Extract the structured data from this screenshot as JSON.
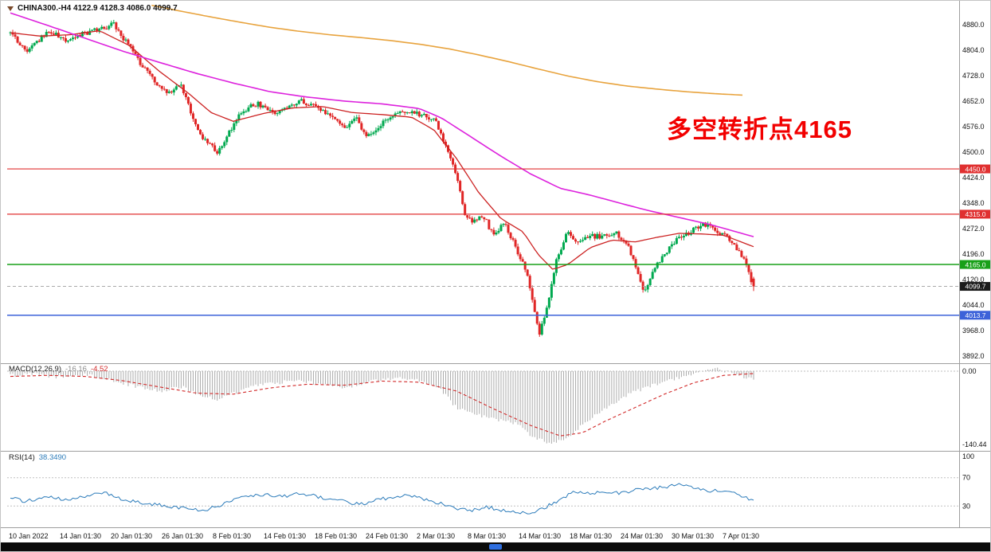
{
  "header": {
    "title": "CHINA300.-H4 4122.9 4128.3 4086.0 4099.7"
  },
  "annotation": {
    "text": "多空转折点4165",
    "color": "#f20000"
  },
  "taskbar": {
    "accent": "#2f6fe0"
  },
  "chart_data": {
    "type": "candlestick",
    "symbol": "CHINA300",
    "timeframe": "H4",
    "title": "CHINA300.-H4 4122.9 4128.3 4086.0 4099.7",
    "last_candle": {
      "open": 4122.9,
      "high": 4128.3,
      "low": 4086.0,
      "close": 4099.7
    },
    "y_axis_ticks": [
      4880,
      4804,
      4728,
      4652,
      4576,
      4500,
      4424,
      4348,
      4272,
      4196,
      4120,
      4044,
      3968,
      3892
    ],
    "x_labels": [
      "10 Jan 2022",
      "14 Jan 01:30",
      "20 Jan 01:30",
      "26 Jan 01:30",
      "8 Feb 01:30",
      "14 Feb 01:30",
      "18 Feb 01:30",
      "24 Feb 01:30",
      "2 Mar 01:30",
      "8 Mar 01:30",
      "14 Mar 01:30",
      "18 Mar 01:30",
      "24 Mar 01:30",
      "30 Mar 01:30",
      "7 Apr 01:30"
    ],
    "price_lines": [
      {
        "value": 4450.0,
        "label": "4450.0",
        "line_color": "#e03030",
        "tag_color": "#e03030",
        "style": "solid",
        "width": 1.2
      },
      {
        "value": 4315.0,
        "label": "4315.0",
        "line_color": "#e03030",
        "tag_color": "#e03030",
        "style": "solid",
        "width": 1.2
      },
      {
        "value": 4165.0,
        "label": "4165.0",
        "line_color": "#18a018",
        "tag_color": "#18a018",
        "style": "solid",
        "width": 1.5
      },
      {
        "value": 4099.7,
        "label": "4099.7",
        "line_color": "#aaaaaa",
        "tag_color": "#1b1b1b",
        "style": "dashed",
        "width": 1
      },
      {
        "value": 4013.7,
        "label": "4013.7",
        "line_color": "#3c62d9",
        "tag_color": "#3c62d9",
        "style": "solid",
        "width": 1.6
      }
    ],
    "candles": {
      "count": 310,
      "up_color": "#00a94f",
      "down_color": "#e02626",
      "close_keyframes": [
        [
          0,
          4855
        ],
        [
          0.021,
          4802
        ],
        [
          0.037,
          4832
        ],
        [
          0.053,
          4862
        ],
        [
          0.075,
          4830
        ],
        [
          0.096,
          4852
        ],
        [
          0.123,
          4868
        ],
        [
          0.139,
          4882
        ],
        [
          0.155,
          4832
        ],
        [
          0.176,
          4762
        ],
        [
          0.198,
          4700
        ],
        [
          0.214,
          4678
        ],
        [
          0.23,
          4702
        ],
        [
          0.246,
          4600
        ],
        [
          0.262,
          4532
        ],
        [
          0.278,
          4500
        ],
        [
          0.294,
          4560
        ],
        [
          0.31,
          4620
        ],
        [
          0.332,
          4645
        ],
        [
          0.353,
          4620
        ],
        [
          0.374,
          4632
        ],
        [
          0.39,
          4658
        ],
        [
          0.412,
          4630
        ],
        [
          0.433,
          4600
        ],
        [
          0.449,
          4576
        ],
        [
          0.465,
          4600
        ],
        [
          0.481,
          4545
        ],
        [
          0.497,
          4580
        ],
        [
          0.513,
          4602
        ],
        [
          0.535,
          4625
        ],
        [
          0.556,
          4610
        ],
        [
          0.572,
          4590
        ],
        [
          0.586,
          4520
        ],
        [
          0.599,
          4440
        ],
        [
          0.612,
          4310
        ],
        [
          0.626,
          4290
        ],
        [
          0.636,
          4312
        ],
        [
          0.65,
          4252
        ],
        [
          0.665,
          4292
        ],
        [
          0.679,
          4222
        ],
        [
          0.693,
          4152
        ],
        [
          0.704,
          4040
        ],
        [
          0.712,
          3958
        ],
        [
          0.723,
          4052
        ],
        [
          0.735,
          4182
        ],
        [
          0.749,
          4262
        ],
        [
          0.765,
          4232
        ],
        [
          0.781,
          4252
        ],
        [
          0.797,
          4246
        ],
        [
          0.813,
          4262
        ],
        [
          0.829,
          4232
        ],
        [
          0.842,
          4152
        ],
        [
          0.853,
          4082
        ],
        [
          0.866,
          4150
        ],
        [
          0.882,
          4200
        ],
        [
          0.898,
          4242
        ],
        [
          0.914,
          4262
        ],
        [
          0.93,
          4286
        ],
        [
          0.947,
          4272
        ],
        [
          0.96,
          4252
        ],
        [
          0.973,
          4232
        ],
        [
          0.986,
          4182
        ],
        [
          1,
          4099.7
        ]
      ]
    },
    "ma_lines": [
      {
        "name": "fast",
        "color": "#cc2222",
        "width": 1.3,
        "points": [
          [
            0,
            4856
          ],
          [
            0.04,
            4846
          ],
          [
            0.08,
            4850
          ],
          [
            0.12,
            4862
          ],
          [
            0.16,
            4818
          ],
          [
            0.2,
            4742
          ],
          [
            0.24,
            4675
          ],
          [
            0.27,
            4618
          ],
          [
            0.3,
            4592
          ],
          [
            0.34,
            4615
          ],
          [
            0.38,
            4632
          ],
          [
            0.42,
            4636
          ],
          [
            0.46,
            4618
          ],
          [
            0.5,
            4612
          ],
          [
            0.54,
            4604
          ],
          [
            0.57,
            4566
          ],
          [
            0.6,
            4482
          ],
          [
            0.63,
            4380
          ],
          [
            0.66,
            4302
          ],
          [
            0.69,
            4262
          ],
          [
            0.71,
            4195
          ],
          [
            0.73,
            4150
          ],
          [
            0.75,
            4165
          ],
          [
            0.78,
            4215
          ],
          [
            0.81,
            4238
          ],
          [
            0.84,
            4232
          ],
          [
            0.87,
            4246
          ],
          [
            0.9,
            4258
          ],
          [
            0.93,
            4256
          ],
          [
            0.96,
            4252
          ],
          [
            1,
            4218
          ]
        ]
      },
      {
        "name": "mid",
        "color": "#dd22dd",
        "width": 1.6,
        "points": [
          [
            0,
            4915
          ],
          [
            0.05,
            4878
          ],
          [
            0.1,
            4840
          ],
          [
            0.15,
            4802
          ],
          [
            0.2,
            4768
          ],
          [
            0.25,
            4735
          ],
          [
            0.3,
            4706
          ],
          [
            0.35,
            4680
          ],
          [
            0.4,
            4664
          ],
          [
            0.45,
            4652
          ],
          [
            0.5,
            4644
          ],
          [
            0.55,
            4630
          ],
          [
            0.58,
            4602
          ],
          [
            0.62,
            4545
          ],
          [
            0.66,
            4488
          ],
          [
            0.7,
            4435
          ],
          [
            0.74,
            4392
          ],
          [
            0.78,
            4372
          ],
          [
            0.82,
            4348
          ],
          [
            0.86,
            4325
          ],
          [
            0.9,
            4305
          ],
          [
            0.94,
            4285
          ],
          [
            1,
            4248
          ]
        ]
      },
      {
        "name": "slow",
        "color": "#e8a33d",
        "width": 1.6,
        "points": [
          [
            0.19,
            4938
          ],
          [
            0.23,
            4920
          ],
          [
            0.27,
            4903
          ],
          [
            0.31,
            4887
          ],
          [
            0.35,
            4872
          ],
          [
            0.39,
            4860
          ],
          [
            0.43,
            4850
          ],
          [
            0.47,
            4842
          ],
          [
            0.51,
            4833
          ],
          [
            0.55,
            4822
          ],
          [
            0.59,
            4808
          ],
          [
            0.63,
            4790
          ],
          [
            0.67,
            4770
          ],
          [
            0.71,
            4748
          ],
          [
            0.75,
            4727
          ],
          [
            0.79,
            4710
          ],
          [
            0.83,
            4697
          ],
          [
            0.87,
            4688
          ],
          [
            0.91,
            4680
          ],
          [
            0.95,
            4674
          ],
          [
            0.985,
            4670
          ]
        ]
      }
    ],
    "indicators": {
      "macd": {
        "name": "MACD(12,26,9)",
        "main_value": "-16.16",
        "signal_value": "-4.52",
        "axis_max_label": "0.00",
        "axis_min_label": "-140.44",
        "histogram_color": "#ababab",
        "signal_color": "#d22a2a",
        "histogram_keyframes": [
          [
            0,
            -8
          ],
          [
            0.03,
            -5
          ],
          [
            0.06,
            -11
          ],
          [
            0.1,
            -7
          ],
          [
            0.13,
            -14
          ],
          [
            0.16,
            -26
          ],
          [
            0.2,
            -38
          ],
          [
            0.23,
            -30
          ],
          [
            0.26,
            -48
          ],
          [
            0.28,
            -55
          ],
          [
            0.3,
            -42
          ],
          [
            0.33,
            -28
          ],
          [
            0.36,
            -22
          ],
          [
            0.39,
            -18
          ],
          [
            0.42,
            -26
          ],
          [
            0.45,
            -31
          ],
          [
            0.48,
            -22
          ],
          [
            0.5,
            -15
          ],
          [
            0.53,
            -12
          ],
          [
            0.56,
            -22
          ],
          [
            0.58,
            -36
          ],
          [
            0.6,
            -70
          ],
          [
            0.63,
            -85
          ],
          [
            0.66,
            -95
          ],
          [
            0.68,
            -100
          ],
          [
            0.7,
            -122
          ],
          [
            0.72,
            -136
          ],
          [
            0.73,
            -140
          ],
          [
            0.75,
            -126
          ],
          [
            0.77,
            -102
          ],
          [
            0.79,
            -82
          ],
          [
            0.81,
            -62
          ],
          [
            0.83,
            -45
          ],
          [
            0.85,
            -34
          ],
          [
            0.87,
            -24
          ],
          [
            0.89,
            -16
          ],
          [
            0.91,
            -8
          ],
          [
            0.93,
            0
          ],
          [
            0.95,
            4
          ],
          [
            0.97,
            -4
          ],
          [
            0.99,
            -12
          ],
          [
            1,
            -16.16
          ]
        ],
        "signal_keyframes": [
          [
            0,
            -10
          ],
          [
            0.05,
            -8
          ],
          [
            0.1,
            -10
          ],
          [
            0.15,
            -18
          ],
          [
            0.2,
            -30
          ],
          [
            0.25,
            -42
          ],
          [
            0.3,
            -44
          ],
          [
            0.35,
            -32
          ],
          [
            0.4,
            -25
          ],
          [
            0.45,
            -27
          ],
          [
            0.5,
            -19
          ],
          [
            0.55,
            -21
          ],
          [
            0.6,
            -38
          ],
          [
            0.65,
            -72
          ],
          [
            0.7,
            -104
          ],
          [
            0.74,
            -124
          ],
          [
            0.77,
            -118
          ],
          [
            0.8,
            -96
          ],
          [
            0.84,
            -70
          ],
          [
            0.88,
            -44
          ],
          [
            0.92,
            -22
          ],
          [
            0.96,
            -8
          ],
          [
            1,
            -4.52
          ]
        ]
      },
      "rsi": {
        "name": "RSI(14)",
        "value": "38.3490",
        "levels": [
          70,
          30
        ],
        "axis_labels": [
          "100",
          "70",
          "30"
        ],
        "line_color": "#2b7bba",
        "keyframes": [
          [
            0,
            42
          ],
          [
            0.02,
            36
          ],
          [
            0.05,
            44
          ],
          [
            0.08,
            38
          ],
          [
            0.11,
            46
          ],
          [
            0.13,
            48
          ],
          [
            0.15,
            40
          ],
          [
            0.18,
            34
          ],
          [
            0.21,
            30
          ],
          [
            0.24,
            26
          ],
          [
            0.26,
            24
          ],
          [
            0.28,
            30
          ],
          [
            0.31,
            42
          ],
          [
            0.34,
            46
          ],
          [
            0.37,
            44
          ],
          [
            0.39,
            48
          ],
          [
            0.42,
            42
          ],
          [
            0.45,
            37
          ],
          [
            0.47,
            32
          ],
          [
            0.5,
            40
          ],
          [
            0.53,
            46
          ],
          [
            0.55,
            42
          ],
          [
            0.58,
            33
          ],
          [
            0.6,
            26
          ],
          [
            0.62,
            24
          ],
          [
            0.64,
            29
          ],
          [
            0.66,
            24
          ],
          [
            0.68,
            22
          ],
          [
            0.7,
            20
          ],
          [
            0.72,
            28
          ],
          [
            0.74,
            40
          ],
          [
            0.76,
            50
          ],
          [
            0.78,
            47
          ],
          [
            0.8,
            51
          ],
          [
            0.82,
            48
          ],
          [
            0.84,
            52
          ],
          [
            0.86,
            54
          ],
          [
            0.88,
            57
          ],
          [
            0.9,
            60
          ],
          [
            0.92,
            55
          ],
          [
            0.94,
            52
          ],
          [
            0.96,
            50
          ],
          [
            0.98,
            46
          ],
          [
            1,
            38.35
          ]
        ]
      }
    }
  }
}
